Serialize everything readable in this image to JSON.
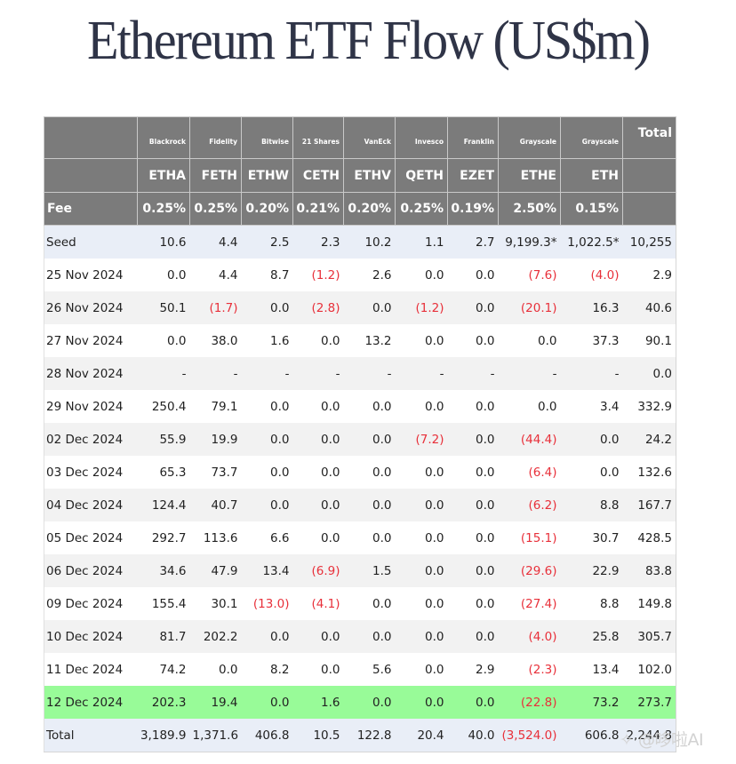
{
  "title": "Ethereum ETF Flow (US$m)",
  "colors": {
    "header_bg": "#7b7b7b",
    "header_text": "#ffffff",
    "negative": "#e8303a",
    "highlight_row": "#98fb98",
    "seed_total_row": "#e9eef7",
    "stripe": "#f2f2f2",
    "title": "#2f3447"
  },
  "table": {
    "issuers": [
      "",
      "Blackrock",
      "Fidelity",
      "Bitwise",
      "21 Shares",
      "VanEck",
      "Invesco",
      "Franklin",
      "Grayscale",
      "Grayscale",
      "Total"
    ],
    "tickers": [
      "",
      "ETHA",
      "FETH",
      "ETHW",
      "CETH",
      "ETHV",
      "QETH",
      "EZET",
      "ETHE",
      "ETH",
      ""
    ],
    "fees": [
      "Fee",
      "0.25%",
      "0.25%",
      "0.20%",
      "0.21%",
      "0.20%",
      "0.25%",
      "0.19%",
      "2.50%",
      "0.15%",
      ""
    ],
    "rows": [
      [
        "Seed",
        "10.6",
        "4.4",
        "2.5",
        "2.3",
        "10.2",
        "1.1",
        "2.7",
        "9,199.3*",
        "1,022.5*",
        "10,255"
      ],
      [
        "25 Nov 2024",
        "0.0",
        "4.4",
        "8.7",
        "(1.2)",
        "2.6",
        "0.0",
        "0.0",
        "(7.6)",
        "(4.0)",
        "2.9"
      ],
      [
        "26 Nov 2024",
        "50.1",
        "(1.7)",
        "0.0",
        "(2.8)",
        "0.0",
        "(1.2)",
        "0.0",
        "(20.1)",
        "16.3",
        "40.6"
      ],
      [
        "27 Nov 2024",
        "0.0",
        "38.0",
        "1.6",
        "0.0",
        "13.2",
        "0.0",
        "0.0",
        "0.0",
        "37.3",
        "90.1"
      ],
      [
        "28 Nov 2024",
        "-",
        "-",
        "-",
        "-",
        "-",
        "-",
        "-",
        "-",
        "-",
        "0.0"
      ],
      [
        "29 Nov 2024",
        "250.4",
        "79.1",
        "0.0",
        "0.0",
        "0.0",
        "0.0",
        "0.0",
        "0.0",
        "3.4",
        "332.9"
      ],
      [
        "02 Dec 2024",
        "55.9",
        "19.9",
        "0.0",
        "0.0",
        "0.0",
        "(7.2)",
        "0.0",
        "(44.4)",
        "0.0",
        "24.2"
      ],
      [
        "03 Dec 2024",
        "65.3",
        "73.7",
        "0.0",
        "0.0",
        "0.0",
        "0.0",
        "0.0",
        "(6.4)",
        "0.0",
        "132.6"
      ],
      [
        "04 Dec 2024",
        "124.4",
        "40.7",
        "0.0",
        "0.0",
        "0.0",
        "0.0",
        "0.0",
        "(6.2)",
        "8.8",
        "167.7"
      ],
      [
        "05 Dec 2024",
        "292.7",
        "113.6",
        "6.6",
        "0.0",
        "0.0",
        "0.0",
        "0.0",
        "(15.1)",
        "30.7",
        "428.5"
      ],
      [
        "06 Dec 2024",
        "34.6",
        "47.9",
        "13.4",
        "(6.9)",
        "1.5",
        "0.0",
        "0.0",
        "(29.6)",
        "22.9",
        "83.8"
      ],
      [
        "09 Dec 2024",
        "155.4",
        "30.1",
        "(13.0)",
        "(4.1)",
        "0.0",
        "0.0",
        "0.0",
        "(27.4)",
        "8.8",
        "149.8"
      ],
      [
        "10 Dec 2024",
        "81.7",
        "202.2",
        "0.0",
        "0.0",
        "0.0",
        "0.0",
        "0.0",
        "(4.0)",
        "25.8",
        "305.7"
      ],
      [
        "11 Dec 2024",
        "74.2",
        "0.0",
        "8.2",
        "0.0",
        "5.6",
        "0.0",
        "2.9",
        "(2.3)",
        "13.4",
        "102.0"
      ],
      [
        "12 Dec 2024",
        "202.3",
        "19.4",
        "0.0",
        "1.6",
        "0.0",
        "0.0",
        "0.0",
        "(22.8)",
        "73.2",
        "273.7"
      ],
      [
        "Total",
        "3,189.9",
        "1,371.6",
        "406.8",
        "10.5",
        "122.8",
        "20.4",
        "40.0",
        "(3,524.0)",
        "606.8",
        "2,244.8"
      ]
    ],
    "row_styles": [
      "seed",
      "even",
      "odd",
      "even",
      "odd",
      "even",
      "odd",
      "even",
      "odd",
      "even",
      "odd",
      "even",
      "odd",
      "even",
      "highlight",
      "total"
    ]
  },
  "watermark": "✧ @哆啦AI"
}
